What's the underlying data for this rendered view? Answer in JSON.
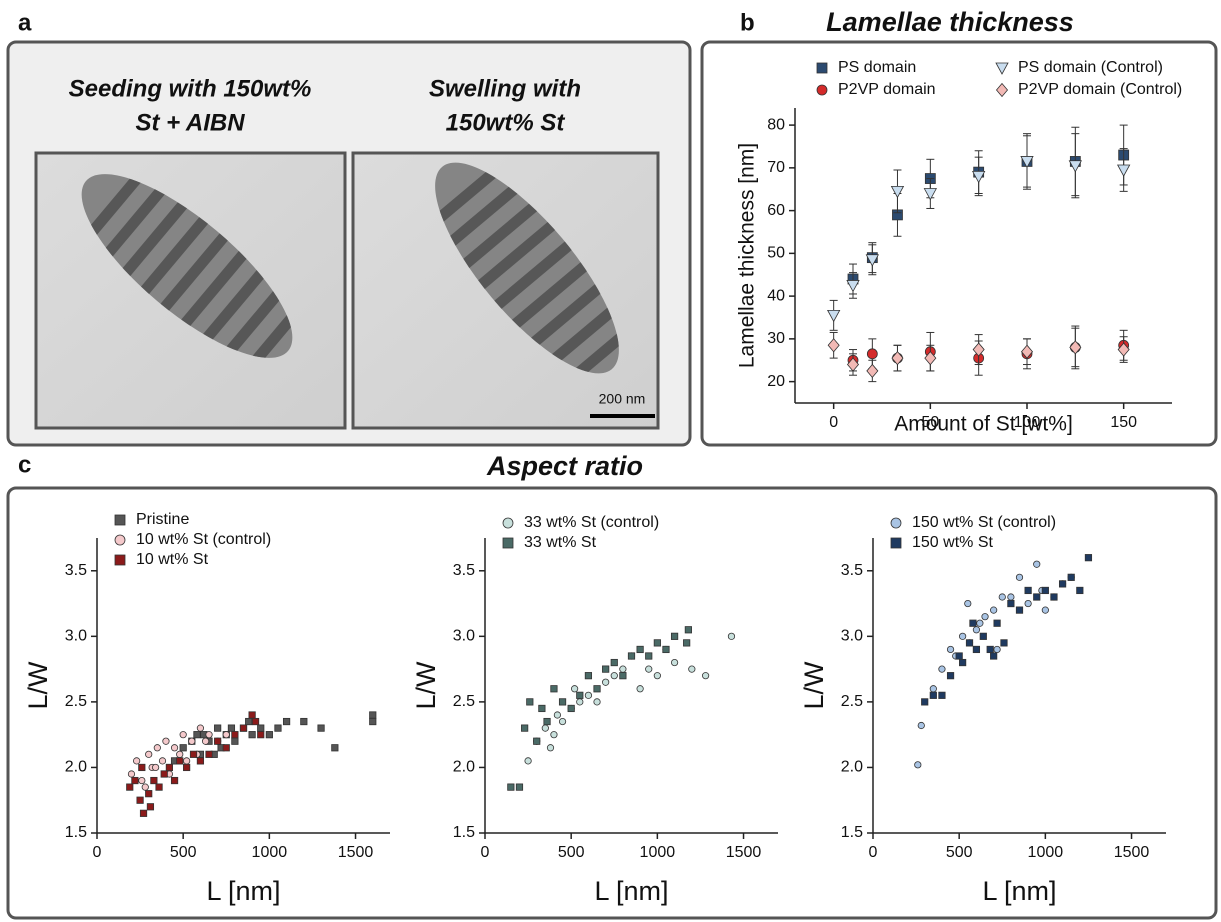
{
  "panel_labels": [
    "a",
    "b",
    "c"
  ],
  "micrographs": [
    {
      "caption": [
        "Seeding with 150wt%",
        "St + AIBN"
      ]
    },
    {
      "caption": [
        "Swelling with",
        "150wt% St"
      ]
    }
  ],
  "scale_bar": "200 nm",
  "aspect_ratio_title": "Aspect ratio",
  "chart_data": [
    {
      "type": "scatter",
      "title": "Lamellae thickness",
      "x_label": "Amount of St [wt%]",
      "y_label": "Lamellae thickness [nm]",
      "xlim": [
        -20,
        175
      ],
      "xticks": [
        0,
        50,
        100,
        150
      ],
      "ylim": [
        15,
        84
      ],
      "yticks": [
        20,
        30,
        40,
        50,
        60,
        70,
        80
      ],
      "series": [
        {
          "name": "PS domain",
          "color": "#2b4a70",
          "marker": "square",
          "x": [
            10,
            20,
            33,
            50,
            75,
            100,
            125,
            150
          ],
          "values": [
            44,
            49,
            59,
            67.5,
            69,
            71.5,
            71.5,
            73
          ],
          "errors": [
            3.5,
            3.5,
            5,
            4.5,
            5,
            6.5,
            8,
            7
          ]
        },
        {
          "name": "PS domain (Control)",
          "color": "#c9ddef",
          "marker": "triangle-down",
          "x": [
            0,
            10,
            20,
            33,
            50,
            75,
            100,
            125,
            150
          ],
          "values": [
            35.5,
            42.5,
            48.5,
            64.5,
            64,
            68,
            71.5,
            70.5,
            69.5
          ],
          "errors": [
            3.5,
            3,
            3.5,
            5,
            3.5,
            4.5,
            6,
            7.5,
            5
          ]
        },
        {
          "name": "P2VP domain",
          "color": "#d42a2a",
          "marker": "circle",
          "x": [
            10,
            20,
            33,
            50,
            75,
            100,
            125,
            150
          ],
          "values": [
            25,
            26.5,
            25.5,
            27,
            25.5,
            26.5,
            28,
            28.5
          ],
          "errors": [
            2.5,
            3.5,
            3,
            4.5,
            4,
            3.5,
            4.5,
            3.5
          ]
        },
        {
          "name": "P2VP domain (Control)",
          "color": "#f2b9b5",
          "marker": "diamond",
          "x": [
            0,
            10,
            20,
            33,
            50,
            75,
            100,
            125,
            150
          ],
          "values": [
            28.5,
            24,
            22.5,
            25.5,
            25.5,
            27.5,
            27,
            28,
            27.5
          ],
          "errors": [
            3,
            2.5,
            2.5,
            3,
            3,
            3.5,
            3,
            5,
            3
          ]
        }
      ]
    },
    {
      "type": "scatter",
      "x_label": "L [nm]",
      "y_label": "L/W",
      "xlim": [
        0,
        1700
      ],
      "xticks": [
        0,
        500,
        1000,
        1500
      ],
      "ylim": [
        1.5,
        3.75
      ],
      "yticks": [
        1.5,
        {
          "value": 2,
          "label": "2.0"
        },
        2.5,
        {
          "value": 3,
          "label": "3.0"
        },
        3.5
      ],
      "series": [
        {
          "name": "Pristine",
          "color": "#555555",
          "marker": "square",
          "x": [
            450,
            500,
            550,
            600,
            620,
            650,
            700,
            720,
            750,
            780,
            800,
            850,
            880,
            900,
            950,
            1000,
            1050,
            1100,
            1200,
            1300,
            1380,
            1600,
            1600,
            680,
            580
          ],
          "values": [
            2.05,
            2.15,
            2.2,
            2.1,
            2.25,
            2.2,
            2.3,
            2.15,
            2.25,
            2.3,
            2.2,
            2.3,
            2.35,
            2.25,
            2.3,
            2.25,
            2.3,
            2.35,
            2.35,
            2.3,
            2.15,
            2.4,
            2.35,
            2.1,
            2.25
          ]
        },
        {
          "name": "10 wt% St (control)",
          "color": "#f4c9cb",
          "marker": "circle",
          "x": [
            200,
            230,
            260,
            300,
            320,
            350,
            380,
            400,
            420,
            450,
            480,
            500,
            520,
            550,
            580,
            600,
            630,
            650,
            700,
            750,
            280,
            340
          ],
          "values": [
            1.95,
            2.05,
            1.9,
            2.1,
            2.0,
            2.15,
            2.05,
            2.2,
            1.95,
            2.15,
            2.1,
            2.25,
            2.05,
            2.2,
            2.1,
            2.3,
            2.2,
            2.25,
            2.2,
            2.25,
            1.85,
            2.0
          ]
        },
        {
          "name": "10 wt% St",
          "color": "#8b1a1a",
          "marker": "square",
          "x": [
            190,
            220,
            250,
            270,
            300,
            330,
            360,
            390,
            420,
            450,
            480,
            520,
            560,
            600,
            650,
            700,
            750,
            800,
            850,
            900,
            920,
            950,
            260,
            310
          ],
          "values": [
            1.85,
            1.9,
            1.75,
            1.65,
            1.8,
            1.9,
            1.85,
            1.95,
            2.0,
            1.9,
            2.05,
            2.0,
            2.1,
            2.05,
            2.1,
            2.2,
            2.15,
            2.25,
            2.3,
            2.4,
            2.35,
            2.25,
            2.0,
            1.7
          ]
        }
      ]
    },
    {
      "type": "scatter",
      "x_label": "L [nm]",
      "y_label": "L/W",
      "xlim": [
        0,
        1700
      ],
      "xticks": [
        0,
        500,
        1000,
        1500
      ],
      "ylim": [
        1.5,
        3.75
      ],
      "yticks": [
        1.5,
        {
          "value": 2,
          "label": "2.0"
        },
        2.5,
        {
          "value": 3,
          "label": "3.0"
        },
        3.5
      ],
      "series": [
        {
          "name": "33 wt% St (control)",
          "color": "#c8e0dc",
          "marker": "circle",
          "x": [
            250,
            300,
            350,
            400,
            420,
            450,
            500,
            550,
            600,
            650,
            700,
            750,
            800,
            850,
            900,
            950,
            1000,
            1050,
            1100,
            1200,
            1280,
            1430,
            380,
            520
          ],
          "values": [
            2.05,
            2.2,
            2.3,
            2.25,
            2.4,
            2.35,
            2.45,
            2.5,
            2.55,
            2.5,
            2.65,
            2.7,
            2.75,
            2.85,
            2.6,
            2.75,
            2.7,
            2.9,
            2.8,
            2.75,
            2.7,
            3.0,
            2.15,
            2.6
          ]
        },
        {
          "name": "33 wt% St",
          "color": "#4a6a66",
          "marker": "square",
          "x": [
            150,
            200,
            230,
            260,
            300,
            330,
            360,
            400,
            450,
            500,
            550,
            600,
            650,
            700,
            750,
            800,
            850,
            900,
            950,
            1000,
            1050,
            1100,
            1180,
            1170
          ],
          "values": [
            1.85,
            1.85,
            2.3,
            2.5,
            2.2,
            2.45,
            2.35,
            2.6,
            2.5,
            2.45,
            2.55,
            2.7,
            2.6,
            2.75,
            2.8,
            2.7,
            2.85,
            2.9,
            2.85,
            2.95,
            2.9,
            3.0,
            3.05,
            2.95
          ]
        }
      ]
    },
    {
      "type": "scatter",
      "x_label": "L [nm]",
      "y_label": "L/W",
      "xlim": [
        0,
        1700
      ],
      "xticks": [
        0,
        500,
        1000,
        1500
      ],
      "ylim": [
        1.5,
        3.75
      ],
      "yticks": [
        1.5,
        {
          "value": 2,
          "label": "2.0"
        },
        2.5,
        {
          "value": 3,
          "label": "3.0"
        },
        3.5
      ],
      "series": [
        {
          "name": "150 wt% St (control)",
          "color": "#a9c4e4",
          "marker": "circle",
          "x": [
            260,
            280,
            350,
            400,
            450,
            480,
            520,
            550,
            600,
            650,
            700,
            750,
            800,
            850,
            900,
            950,
            980,
            1000,
            1050,
            1100,
            1150,
            560,
            620,
            720
          ],
          "values": [
            2.02,
            2.32,
            2.6,
            2.75,
            2.9,
            2.85,
            3.0,
            3.25,
            3.05,
            3.15,
            3.2,
            3.3,
            3.3,
            3.45,
            3.25,
            3.55,
            3.35,
            3.2,
            3.3,
            3.4,
            3.45,
            2.95,
            3.1,
            2.9
          ]
        },
        {
          "name": "150 wt% St",
          "color": "#1f3a60",
          "marker": "square",
          "x": [
            300,
            350,
            400,
            450,
            500,
            520,
            560,
            600,
            640,
            680,
            720,
            760,
            800,
            850,
            900,
            950,
            1000,
            1050,
            1100,
            1150,
            1200,
            1250,
            580,
            700
          ],
          "values": [
            2.5,
            2.55,
            2.55,
            2.7,
            2.85,
            2.8,
            2.95,
            2.9,
            3.0,
            2.9,
            3.1,
            2.95,
            3.25,
            3.2,
            3.35,
            3.3,
            3.35,
            3.3,
            3.4,
            3.45,
            3.35,
            3.6,
            3.1,
            2.85
          ]
        }
      ]
    }
  ]
}
